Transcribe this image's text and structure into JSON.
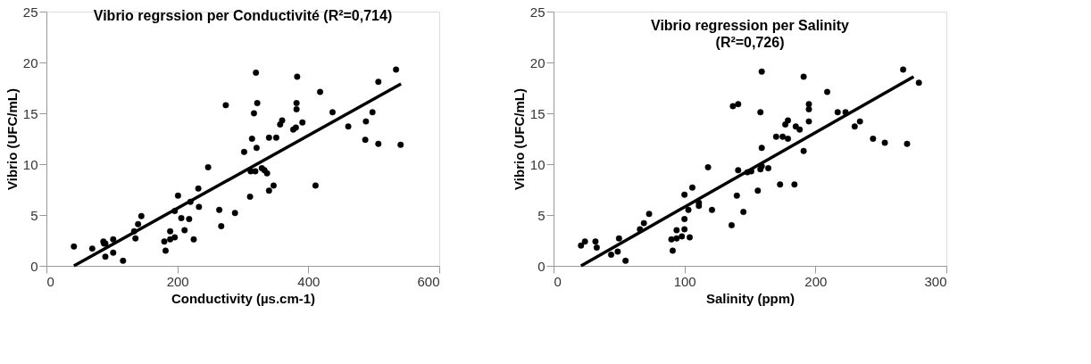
{
  "chart_data": [
    {
      "type": "scatter",
      "title": "Vibrio regrssion per Conductivité (R²=0,714)",
      "xlabel": "Conductivity (µs.cm-1)",
      "ylabel": "Vibrio (UFC/mL)",
      "xlim": [
        0,
        600
      ],
      "ylim": [
        0,
        25
      ],
      "xticks": [
        0,
        200,
        400,
        600
      ],
      "yticks": [
        0,
        5,
        10,
        15,
        20,
        25
      ],
      "grid": false,
      "line_style": "solid",
      "series": [
        {
          "type": "scatter",
          "marker": "circle",
          "color": "#000000",
          "x": [
            42,
            70,
            87,
            90,
            88,
            90,
            102,
            102,
            117,
            134,
            136,
            140,
            145,
            180,
            182,
            189,
            189,
            196,
            196,
            201,
            206,
            211,
            218,
            220,
            225,
            232,
            233,
            247,
            264,
            267,
            274,
            288,
            302,
            311,
            312,
            314,
            317,
            319,
            320,
            321,
            322,
            329,
            333,
            337,
            340,
            340,
            347,
            351,
            357,
            360,
            377,
            381,
            382,
            382,
            383,
            391,
            411,
            418,
            437,
            461,
            487,
            488,
            498,
            507,
            507,
            534,
            541
          ],
          "values": [
            1.9,
            1.7,
            2.4,
            2.2,
            2.2,
            0.9,
            2.6,
            1.3,
            0.5,
            3.4,
            2.7,
            4.1,
            4.9,
            2.4,
            1.5,
            3.4,
            2.6,
            2.8,
            5.4,
            6.9,
            4.7,
            3.5,
            4.6,
            6.3,
            2.6,
            7.6,
            5.8,
            9.7,
            5.5,
            3.9,
            15.8,
            5.2,
            11.2,
            6.8,
            9.3,
            12.5,
            15.0,
            9.3,
            19.0,
            11.6,
            16.0,
            9.6,
            9.4,
            9.1,
            12.6,
            7.4,
            7.9,
            12.6,
            13.9,
            14.3,
            13.4,
            13.6,
            15.4,
            16.0,
            18.6,
            14.1,
            7.9,
            17.1,
            15.1,
            13.7,
            12.4,
            14.2,
            15.1,
            12.0,
            18.1,
            19.3,
            11.9
          ]
        },
        {
          "type": "line",
          "color": "#000000",
          "x": [
            42,
            541.6
          ],
          "values": [
            0,
            17.9
          ]
        }
      ]
    },
    {
      "type": "scatter",
      "title": "Vibrio regression  per Salinity",
      "subtitle": "(R²=0,726)",
      "xlabel": "Salinity (ppm)",
      "ylabel": "Vibrio (UFC/mL)",
      "xlim": [
        0,
        300
      ],
      "ylim": [
        0,
        25
      ],
      "xticks": [
        0,
        100,
        200,
        300
      ],
      "yticks": [
        0,
        5,
        10,
        15,
        20,
        25
      ],
      "grid": false,
      "line_style": "solid",
      "series": [
        {
          "type": "scatter",
          "marker": "circle",
          "color": "#000000",
          "x": [
            21,
            24,
            32,
            33,
            44,
            49,
            50,
            55,
            66,
            69,
            73,
            90,
            91,
            94,
            94,
            98,
            100,
            100,
            100,
            103,
            104,
            106,
            111,
            111,
            118,
            121,
            136,
            137,
            140,
            141,
            141,
            145,
            148,
            151,
            156,
            158,
            158,
            159,
            159,
            159,
            164,
            170,
            173,
            175,
            179,
            177,
            179,
            184,
            185,
            188,
            191,
            191,
            195,
            195,
            195,
            209,
            217,
            223,
            230,
            234,
            244,
            253,
            267,
            270,
            279
          ],
          "values": [
            2.0,
            2.4,
            2.4,
            1.8,
            1.1,
            1.4,
            2.7,
            0.5,
            3.6,
            4.2,
            5.1,
            2.6,
            1.5,
            3.5,
            2.7,
            2.9,
            4.6,
            7.0,
            3.6,
            5.5,
            2.8,
            7.7,
            6.2,
            5.9,
            9.7,
            5.5,
            4.0,
            15.7,
            6.9,
            15.9,
            9.4,
            5.3,
            9.2,
            9.3,
            7.4,
            15.1,
            9.5,
            19.1,
            11.6,
            9.8,
            9.6,
            12.7,
            8.0,
            12.7,
            12.5,
            13.9,
            14.3,
            8.0,
            13.7,
            13.4,
            11.3,
            18.6,
            14.2,
            15.9,
            15.4,
            17.1,
            15.1,
            15.1,
            13.7,
            14.2,
            12.5,
            12.1,
            19.3,
            12.0,
            18.0
          ]
        },
        {
          "type": "line",
          "color": "#000000",
          "x": [
            21,
            275
          ],
          "values": [
            0,
            18.6
          ]
        }
      ]
    }
  ]
}
